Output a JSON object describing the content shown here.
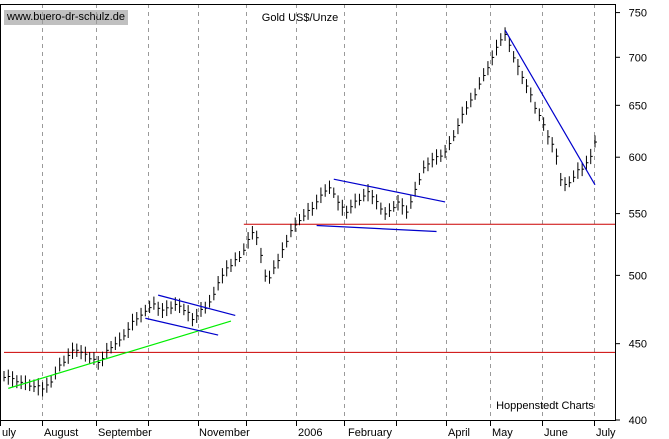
{
  "chart_data": {
    "type": "bar",
    "style": "ohlc-daily",
    "title": "Gold US$/Unze",
    "source_label": "www.buero-dr-schulz.de",
    "footer_label": "Hoppenstedt Charts",
    "ylabel": "",
    "y_axis_position": "right",
    "yscale": "log",
    "ylim": [
      400,
      760
    ],
    "y_ticks": [
      400,
      450,
      500,
      550,
      600,
      650,
      700,
      750
    ],
    "x_month_labels": [
      "uly",
      "August",
      "September",
      "November",
      "2006",
      "February",
      "April",
      "May",
      "June",
      "July"
    ],
    "grid": "vertical-dashed",
    "price_points": [
      [
        0,
        428
      ],
      [
        2,
        428
      ],
      [
        4,
        426
      ],
      [
        6,
        425
      ],
      [
        8,
        424
      ],
      [
        10,
        423
      ],
      [
        12,
        422
      ],
      [
        14,
        421
      ],
      [
        16,
        421
      ],
      [
        18,
        420
      ],
      [
        20,
        422
      ],
      [
        22,
        425
      ],
      [
        24,
        430
      ],
      [
        26,
        435
      ],
      [
        28,
        438
      ],
      [
        30,
        442
      ],
      [
        32,
        445
      ],
      [
        34,
        446
      ],
      [
        36,
        444
      ],
      [
        38,
        442
      ],
      [
        40,
        440
      ],
      [
        42,
        439
      ],
      [
        44,
        438
      ],
      [
        46,
        440
      ],
      [
        48,
        445
      ],
      [
        50,
        448
      ],
      [
        52,
        450
      ],
      [
        54,
        452
      ],
      [
        56,
        456
      ],
      [
        58,
        460
      ],
      [
        60,
        465
      ],
      [
        62,
        468
      ],
      [
        64,
        470
      ],
      [
        66,
        474
      ],
      [
        68,
        476
      ],
      [
        70,
        478
      ],
      [
        72,
        476
      ],
      [
        74,
        474
      ],
      [
        76,
        475
      ],
      [
        78,
        476
      ],
      [
        80,
        478
      ],
      [
        82,
        476
      ],
      [
        84,
        474
      ],
      [
        86,
        472
      ],
      [
        88,
        468
      ],
      [
        90,
        470
      ],
      [
        92,
        474
      ],
      [
        94,
        476
      ],
      [
        96,
        480
      ],
      [
        98,
        485
      ],
      [
        100,
        495
      ],
      [
        102,
        500
      ],
      [
        104,
        505
      ],
      [
        106,
        508
      ],
      [
        108,
        512
      ],
      [
        110,
        515
      ],
      [
        112,
        520
      ],
      [
        114,
        528
      ],
      [
        116,
        535
      ],
      [
        118,
        530
      ],
      [
        120,
        515
      ],
      [
        122,
        500
      ],
      [
        124,
        498
      ],
      [
        126,
        505
      ],
      [
        128,
        512
      ],
      [
        130,
        520
      ],
      [
        132,
        528
      ],
      [
        134,
        536
      ],
      [
        136,
        540
      ],
      [
        138,
        545
      ],
      [
        140,
        548
      ],
      [
        142,
        552
      ],
      [
        144,
        555
      ],
      [
        146,
        560
      ],
      [
        148,
        565
      ],
      [
        150,
        570
      ],
      [
        152,
        572
      ],
      [
        154,
        568
      ],
      [
        156,
        560
      ],
      [
        158,
        555
      ],
      [
        160,
        552
      ],
      [
        162,
        556
      ],
      [
        164,
        560
      ],
      [
        166,
        562
      ],
      [
        168,
        565
      ],
      [
        170,
        568
      ],
      [
        172,
        565
      ],
      [
        174,
        560
      ],
      [
        176,
        555
      ],
      [
        178,
        550
      ],
      [
        180,
        552
      ],
      [
        182,
        556
      ],
      [
        184,
        560
      ],
      [
        186,
        556
      ],
      [
        188,
        552
      ],
      [
        190,
        560
      ],
      [
        192,
        570
      ],
      [
        194,
        580
      ],
      [
        196,
        590
      ],
      [
        198,
        595
      ],
      [
        200,
        598
      ],
      [
        202,
        600
      ],
      [
        204,
        602
      ],
      [
        206,
        605
      ],
      [
        208,
        612
      ],
      [
        210,
        620
      ],
      [
        212,
        630
      ],
      [
        214,
        640
      ],
      [
        216,
        648
      ],
      [
        218,
        655
      ],
      [
        220,
        662
      ],
      [
        222,
        672
      ],
      [
        224,
        680
      ],
      [
        226,
        690
      ],
      [
        228,
        700
      ],
      [
        230,
        710
      ],
      [
        232,
        720
      ],
      [
        234,
        725
      ],
      [
        236,
        712
      ],
      [
        238,
        700
      ],
      [
        240,
        690
      ],
      [
        242,
        680
      ],
      [
        244,
        670
      ],
      [
        246,
        660
      ],
      [
        248,
        648
      ],
      [
        250,
        640
      ],
      [
        252,
        630
      ],
      [
        254,
        620
      ],
      [
        256,
        612
      ],
      [
        258,
        600
      ],
      [
        260,
        580
      ],
      [
        262,
        575
      ],
      [
        264,
        578
      ],
      [
        266,
        582
      ],
      [
        268,
        588
      ],
      [
        270,
        590
      ],
      [
        272,
        595
      ],
      [
        274,
        600
      ],
      [
        276,
        615
      ]
    ],
    "trendlines": [
      {
        "color": "#00ee00",
        "points": [
          [
            2,
            420
          ],
          [
            106,
            466
          ]
        ]
      },
      {
        "color": "#0000cc",
        "points": [
          [
            72,
            485
          ],
          [
            108,
            470
          ]
        ]
      },
      {
        "color": "#0000cc",
        "points": [
          [
            66,
            468
          ],
          [
            100,
            456
          ]
        ]
      },
      {
        "color": "#0000cc",
        "points": [
          [
            154,
            580
          ],
          [
            206,
            560
          ]
        ]
      },
      {
        "color": "#0000cc",
        "points": [
          [
            146,
            540
          ],
          [
            202,
            535
          ]
        ]
      },
      {
        "color": "#0000cc",
        "points": [
          [
            234,
            730
          ],
          [
            276,
            575
          ]
        ]
      }
    ],
    "horizontal_lines": [
      {
        "color": "#cc0000",
        "value": 444,
        "x_start": 0
      },
      {
        "color": "#cc0000",
        "value": 541,
        "x_start": 112
      }
    ]
  }
}
